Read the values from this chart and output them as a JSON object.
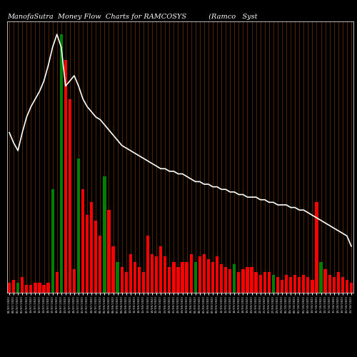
{
  "title": "ManofaSutra  Money Flow  Charts for RAMCOSYS          (Ramco   Syst",
  "bg_color": "#000000",
  "bar_colors": [
    "red",
    "red",
    "green",
    "red",
    "red",
    "red",
    "red",
    "red",
    "red",
    "red",
    "green",
    "red",
    "green",
    "red",
    "red",
    "red",
    "green",
    "red",
    "red",
    "red",
    "red",
    "red",
    "green",
    "red",
    "red",
    "green",
    "red",
    "red",
    "red",
    "red",
    "red",
    "red",
    "red",
    "red",
    "red",
    "red",
    "red",
    "red",
    "red",
    "red",
    "red",
    "red",
    "red",
    "green",
    "red",
    "red",
    "red",
    "red",
    "red",
    "red",
    "red",
    "red",
    "green",
    "red",
    "red",
    "red",
    "red",
    "red",
    "red",
    "red",
    "red",
    "green",
    "red",
    "red",
    "red",
    "red",
    "red",
    "red",
    "red",
    "red",
    "red",
    "red",
    "green",
    "red",
    "red",
    "red",
    "red",
    "red",
    "red",
    "red"
  ],
  "bar_heights": [
    4,
    5,
    4,
    6,
    3,
    3,
    4,
    4,
    3,
    4,
    40,
    8,
    100,
    90,
    75,
    9,
    52,
    40,
    30,
    35,
    28,
    22,
    45,
    32,
    18,
    12,
    10,
    8,
    15,
    12,
    10,
    8,
    22,
    15,
    14,
    18,
    14,
    10,
    12,
    10,
    12,
    12,
    15,
    12,
    14,
    15,
    13,
    12,
    14,
    11,
    10,
    9,
    11,
    8,
    9,
    10,
    10,
    8,
    7,
    8,
    8,
    7,
    6,
    5,
    7,
    6,
    7,
    6,
    7,
    6,
    5,
    35,
    12,
    9,
    7,
    6,
    8,
    6,
    5,
    4
  ],
  "line_values": [
    62,
    58,
    55,
    62,
    68,
    72,
    75,
    78,
    82,
    88,
    95,
    100,
    95,
    80,
    82,
    84,
    80,
    75,
    72,
    70,
    68,
    67,
    65,
    63,
    61,
    59,
    57,
    56,
    55,
    54,
    53,
    52,
    51,
    50,
    49,
    48,
    48,
    47,
    47,
    46,
    46,
    45,
    44,
    43,
    43,
    42,
    42,
    41,
    41,
    40,
    40,
    39,
    39,
    38,
    38,
    37,
    37,
    37,
    36,
    36,
    35,
    35,
    34,
    34,
    34,
    33,
    33,
    32,
    32,
    31,
    30,
    29,
    28,
    27,
    26,
    25,
    24,
    23,
    22,
    18
  ],
  "xlabels": [
    "01/07/2023",
    "04/07/2023",
    "05/07/2023",
    "06/07/2023",
    "07/07/2023",
    "10/07/2023",
    "11/07/2023",
    "12/07/2023",
    "13/07/2023",
    "14/07/2023",
    "17/07/2023",
    "18/07/2023",
    "19/07/2023",
    "20/07/2023",
    "21/07/2023",
    "24/07/2023",
    "25/07/2023",
    "26/07/2023",
    "27/07/2023",
    "28/07/2023",
    "31/07/2023",
    "01/08/2023",
    "02/08/2023",
    "03/08/2023",
    "04/08/2023",
    "07/08/2023",
    "08/08/2023",
    "09/08/2023",
    "10/08/2023",
    "11/08/2023",
    "14/08/2023",
    "16/08/2023",
    "17/08/2023",
    "18/08/2023",
    "21/08/2023",
    "22/08/2023",
    "23/08/2023",
    "24/08/2023",
    "25/08/2023",
    "28/08/2023",
    "29/08/2023",
    "30/08/2023",
    "31/08/2023",
    "01/09/2023",
    "04/09/2023",
    "05/09/2023",
    "06/09/2023",
    "07/09/2023",
    "08/09/2023",
    "11/09/2023",
    "12/09/2023",
    "13/09/2023",
    "14/09/2023",
    "15/09/2023",
    "18/09/2023",
    "19/09/2023",
    "20/09/2023",
    "21/09/2023",
    "22/09/2023",
    "25/09/2023",
    "26/09/2023",
    "27/09/2023",
    "28/09/2023",
    "29/09/2023",
    "02/10/2023",
    "03/10/2023",
    "04/10/2023",
    "05/10/2023",
    "06/10/2023",
    "09/10/2023",
    "10/10/2023",
    "11/10/2023",
    "12/10/2023",
    "13/10/2023",
    "16/10/2023",
    "17/10/2023",
    "18/10/2023",
    "19/10/2023",
    "20/10/2023",
    "23/10/2023"
  ],
  "grid_color": "#7B3800",
  "line_color": "#ffffff",
  "title_color": "#ffffff",
  "title_fontsize": 7.0
}
